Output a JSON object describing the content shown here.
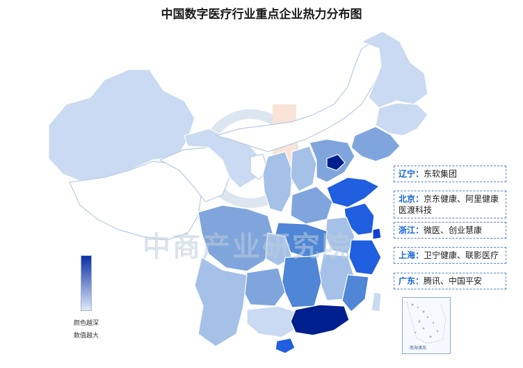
{
  "title": "中国数字医疗行业重点企业热力分布图",
  "watermark": "中商产业研究院",
  "legend": {
    "line1": "颜色越深",
    "line2": "数值越大",
    "gradient_top": "#0a2fa3",
    "gradient_bottom": "#dfe9f7"
  },
  "companies": [
    {
      "city": "辽宁：",
      "names": "东软集团"
    },
    {
      "city": "北京：",
      "names": "京东健康、阿里健康医渡科技"
    },
    {
      "city": "浙江：",
      "names": "微医、创业慧康"
    },
    {
      "city": "上海：",
      "names": "卫宁健康、联影医疗"
    },
    {
      "city": "广东：",
      "names": "腾讯、中国平安"
    }
  ],
  "inset": {
    "label": "南海诸岛"
  },
  "colors": {
    "level0": "#ffffff",
    "level1": "#c9daf2",
    "level2": "#a5c1e8",
    "level3": "#7fa5dc",
    "level4": "#4f86d6",
    "level5": "#1f5fe0",
    "level6": "#0f3fd4",
    "level7": "#001f8f",
    "border": "#8eabd6"
  }
}
